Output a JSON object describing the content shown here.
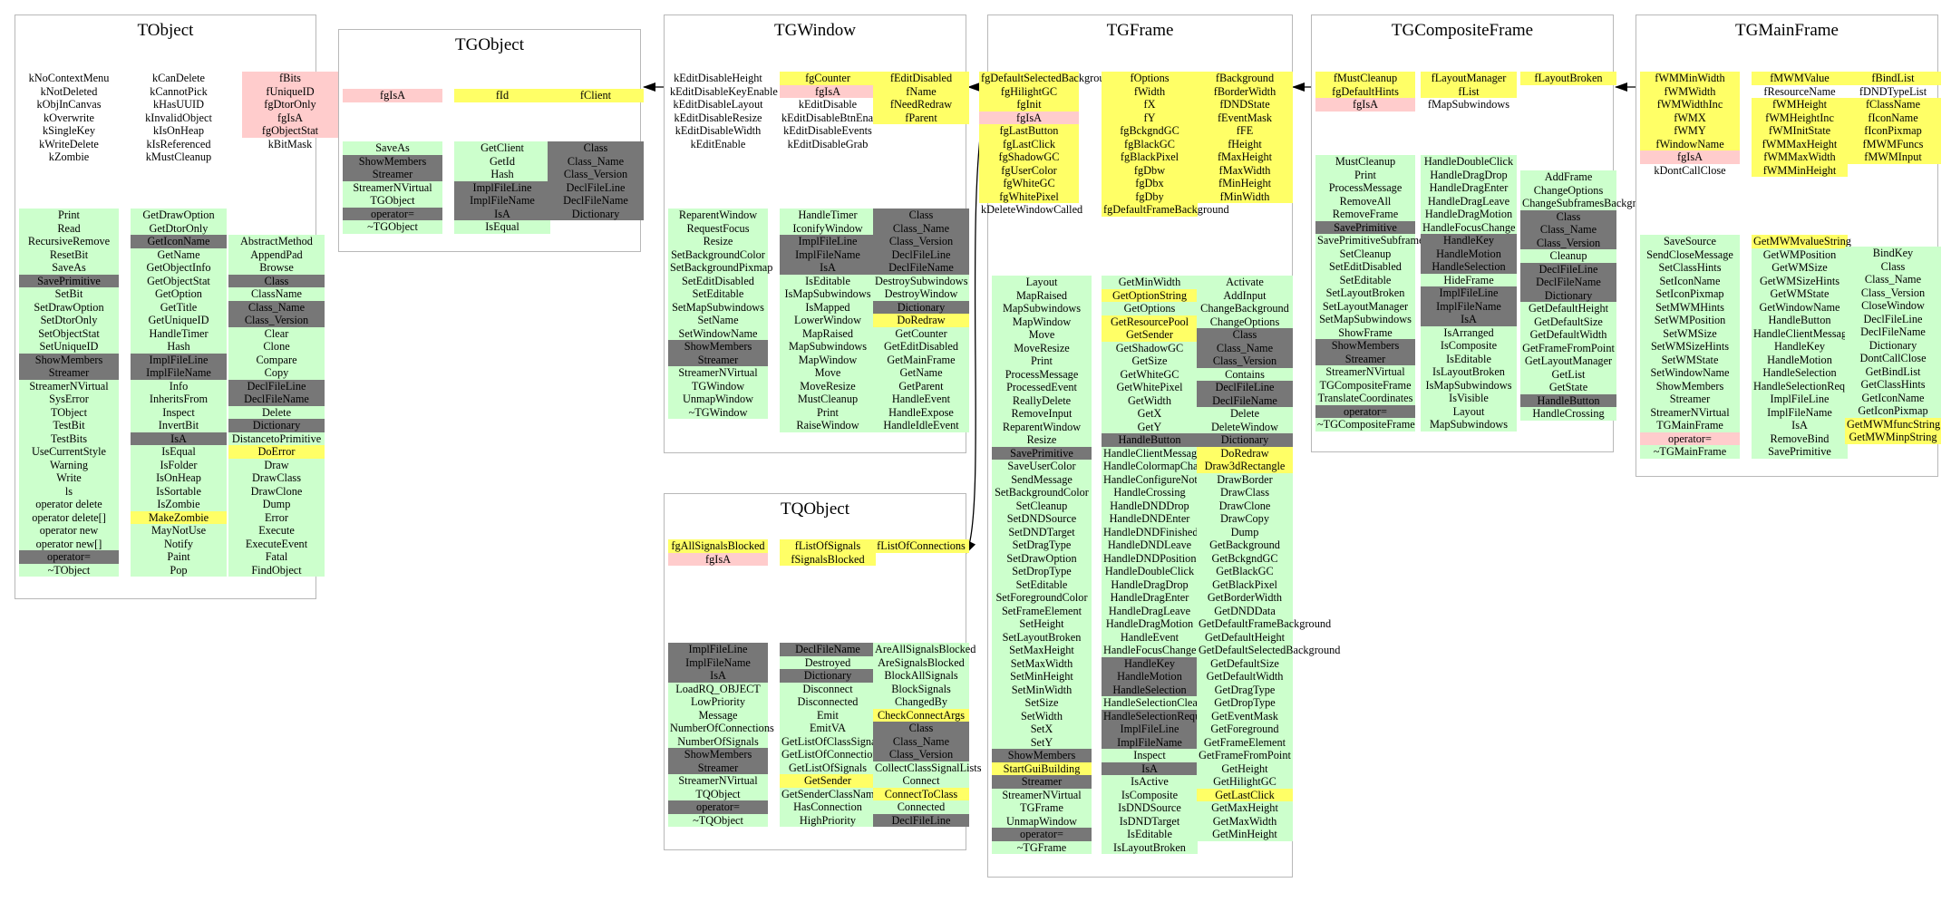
{
  "classes": [
    {
      "name": "TObject",
      "cols": [
        [
          "kNoContextMenu",
          "kNotDeleted",
          "kObjInCanvas",
          "kOverwrite",
          "kSingleKey",
          "kWriteDelete",
          "kZombie"
        ],
        [
          "kCanDelete",
          "kCannotPick",
          "kHasUUID",
          "kInvalidObject",
          "kIsOnHeap",
          "kIsReferenced",
          "kMustCleanup"
        ],
        [
          "fBits|r",
          "fUniqueID|r",
          "fgDtorOnly|r",
          "fgIsA|r",
          "fgObjectStat|r",
          "kBitMask"
        ],
        [
          "Print",
          "Read",
          "RecursiveRemove",
          "ResetBit",
          "SaveAs",
          "SavePrimitive|d",
          "SetBit",
          "SetDrawOption",
          "SetDtorOnly",
          "SetObjectStat",
          "SetUniqueID",
          "ShowMembers|d",
          "Streamer|d",
          "StreamerNVirtual",
          "SysError",
          "TObject",
          "TestBit",
          "TestBits",
          "UseCurrentStyle",
          "Warning",
          "Write",
          "ls",
          "operator delete",
          "operator delete[]",
          "operator new",
          "operator new[]",
          "operator=|d",
          "~TObject"
        ],
        [
          "GetDrawOption",
          "GetDtorOnly",
          "GetIconName|d",
          "GetName",
          "GetObjectInfo",
          "GetObjectStat",
          "GetOption",
          "GetTitle",
          "GetUniqueID",
          "HandleTimer",
          "Hash",
          "ImplFileLine|d",
          "ImplFileName|d",
          "Info",
          "InheritsFrom",
          "Inspect",
          "InvertBit",
          "IsA|d",
          "IsEqual",
          "IsFolder",
          "IsOnHeap",
          "IsSortable",
          "IsZombie",
          "MakeZombie|y",
          "MayNotUse",
          "Notify",
          "Paint",
          "Pop"
        ],
        [
          "AbstractMethod",
          "AppendPad",
          "Browse",
          "Class|d",
          "ClassName",
          "Class_Name|d",
          "Class_Version|d",
          "Clear",
          "Clone",
          "Compare",
          "Copy",
          "DeclFileLine|d",
          "DeclFileName|d",
          "Delete",
          "Dictionary|d",
          "DistancetoPrimitive",
          "DoError|y",
          "Draw",
          "DrawClass",
          "DrawClone",
          "Dump",
          "Error",
          "Execute",
          "ExecuteEvent",
          "Fatal",
          "FindObject"
        ]
      ]
    },
    {
      "name": "TGObject",
      "cols": [
        [
          "fgIsA|r"
        ],
        [
          "fId|y"
        ],
        [
          "fClient|y"
        ],
        [
          "SaveAs",
          "ShowMembers|d",
          "Streamer|d",
          "StreamerNVirtual",
          "TGObject",
          "operator=|d",
          "~TGObject"
        ],
        [
          "GetClient",
          "GetId",
          "Hash",
          "ImplFileLine|d",
          "ImplFileName|d",
          "IsA|d",
          "IsEqual"
        ],
        [
          "Class|d",
          "Class_Name|d",
          "Class_Version|d",
          "DeclFileLine|d",
          "DeclFileName|d",
          "Dictionary|d"
        ]
      ]
    },
    {
      "name": "TGWindow",
      "cols": [
        [
          "kEditDisableHeight",
          "kEditDisableKeyEnable",
          "kEditDisableLayout",
          "kEditDisableResize",
          "kEditDisableWidth",
          "kEditEnable"
        ],
        [
          "fgCounter|y",
          "fgIsA|r",
          "kEditDisable",
          "kEditDisableBtnEnable",
          "kEditDisableEvents",
          "kEditDisableGrab"
        ],
        [
          "fEditDisabled|y",
          "fName|y",
          "fNeedRedraw|y",
          "fParent|y"
        ],
        [
          "ReparentWindow",
          "RequestFocus",
          "Resize",
          "SetBackgroundColor",
          "SetBackgroundPixmap",
          "SetEditDisabled",
          "SetEditable",
          "SetMapSubwindows",
          "SetName",
          "SetWindowName",
          "ShowMembers|d",
          "Streamer|d",
          "StreamerNVirtual",
          "TGWindow",
          "UnmapWindow",
          "~TGWindow"
        ],
        [
          "HandleTimer",
          "IconifyWindow",
          "ImplFileLine|d",
          "ImplFileName|d",
          "IsA|d",
          "IsEditable",
          "IsMapSubwindows",
          "IsMapped",
          "LowerWindow",
          "MapRaised",
          "MapSubwindows",
          "MapWindow",
          "Move",
          "MoveResize",
          "MustCleanup",
          "Print",
          "RaiseWindow"
        ],
        [
          "Class|d",
          "Class_Name|d",
          "Class_Version|d",
          "DeclFileLine|d",
          "DeclFileName|d",
          "DestroySubwindows",
          "DestroyWindow",
          "Dictionary|d",
          "DoRedraw|y",
          "GetCounter",
          "GetEditDisabled",
          "GetMainFrame",
          "GetName",
          "GetParent",
          "HandleEvent",
          "HandleExpose",
          "HandleIdleEvent"
        ]
      ]
    },
    {
      "name": "TQObject",
      "cols": [
        [
          "fgAllSignalsBlocked|y",
          "fgIsA|r"
        ],
        [
          "fListOfSignals|y",
          "fSignalsBlocked|y"
        ],
        [
          "fListOfConnections|y"
        ],
        [
          "ImplFileLine|d",
          "ImplFileName|d",
          "IsA|d",
          "LoadRQ_OBJECT",
          "LowPriority",
          "Message",
          "NumberOfConnections",
          "NumberOfSignals",
          "ShowMembers|d",
          "Streamer|d",
          "StreamerNVirtual",
          "TQObject",
          "operator=|d",
          "~TQObject"
        ],
        [
          "DeclFileName|d",
          "Destroyed",
          "Dictionary|d",
          "Disconnect",
          "Disconnected",
          "Emit",
          "EmitVA",
          "GetListOfClassSignals",
          "GetListOfConnections",
          "GetListOfSignals",
          "GetSender|y",
          "GetSenderClassName",
          "HasConnection",
          "HighPriority"
        ],
        [
          "AreAllSignalsBlocked",
          "AreSignalsBlocked",
          "BlockAllSignals",
          "BlockSignals",
          "ChangedBy",
          "CheckConnectArgs|y",
          "Class|d",
          "Class_Name|d",
          "Class_Version|d",
          "CollectClassSignalLists",
          "Connect",
          "ConnectToClass|y",
          "Connected",
          "DeclFileLine|d"
        ]
      ]
    },
    {
      "name": "TGFrame",
      "cols": [
        [
          "fgDefaultSelectedBackground|y",
          "fgHilightGC|y",
          "fgInit|y",
          "fgIsA|r",
          "fgLastButton|y",
          "fgLastClick|y",
          "fgShadowGC|y",
          "fgUserColor|y",
          "fgWhiteGC|y",
          "fgWhitePixel|y",
          "kDeleteWindowCalled"
        ],
        [
          "fOptions|y",
          "fWidth|y",
          "fX|y",
          "fY|y",
          "fgBckgndGC|y",
          "fgBlackGC|y",
          "fgBlackPixel|y",
          "fgDbw|y",
          "fgDbx|y",
          "fgDby|y",
          "fgDefaultFrameBackground|y"
        ],
        [
          "fBackground|y",
          "fBorderWidth|y",
          "fDNDState|y",
          "fEventMask|y",
          "fFE|y",
          "fHeight|y",
          "fMaxHeight|y",
          "fMaxWidth|y",
          "fMinHeight|y",
          "fMinWidth|y"
        ],
        [
          "Layout",
          "MapRaised",
          "MapSubwindows",
          "MapWindow",
          "Move",
          "MoveResize",
          "Print",
          "ProcessMessage",
          "ProcessedEvent",
          "ReallyDelete",
          "RemoveInput",
          "ReparentWindow",
          "Resize",
          "SavePrimitive|d",
          "SaveUserColor",
          "SendMessage",
          "SetBackgroundColor",
          "SetCleanup",
          "SetDNDSource",
          "SetDNDTarget",
          "SetDragType",
          "SetDrawOption",
          "SetDropType",
          "SetEditable",
          "SetForegroundColor",
          "SetFrameElement",
          "SetHeight",
          "SetLayoutBroken",
          "SetMaxHeight",
          "SetMaxWidth",
          "SetMinHeight",
          "SetMinWidth",
          "SetSize",
          "SetWidth",
          "SetX",
          "SetY",
          "ShowMembers|d",
          "StartGuiBuilding|y",
          "Streamer|d",
          "StreamerNVirtual",
          "TGFrame",
          "UnmapWindow",
          "operator=|d",
          "~TGFrame"
        ],
        [
          "GetMinWidth",
          "GetOptionString|y",
          "GetOptions",
          "GetResourcePool|y",
          "GetSender|y",
          "GetShadowGC",
          "GetSize",
          "GetWhiteGC",
          "GetWhitePixel",
          "GetWidth",
          "GetX",
          "GetY",
          "HandleButton|d",
          "HandleClientMessage",
          "HandleColormapChange",
          "HandleConfigureNotify",
          "HandleCrossing",
          "HandleDNDDrop",
          "HandleDNDEnter",
          "HandleDNDFinished",
          "HandleDNDLeave",
          "HandleDNDPosition",
          "HandleDoubleClick",
          "HandleDragDrop",
          "HandleDragEnter",
          "HandleDragLeave",
          "HandleDragMotion",
          "HandleEvent",
          "HandleFocusChange",
          "HandleKey|d",
          "HandleMotion|d",
          "HandleSelection|d",
          "HandleSelectionClear",
          "HandleSelectionRequest|d",
          "ImplFileLine|d",
          "ImplFileName|d",
          "Inspect",
          "IsA|d",
          "IsActive",
          "IsComposite",
          "IsDNDSource",
          "IsDNDTarget",
          "IsEditable",
          "IsLayoutBroken"
        ],
        [
          "Activate",
          "AddInput",
          "ChangeBackground",
          "ChangeOptions",
          "Class|d",
          "Class_Name|d",
          "Class_Version|d",
          "Contains",
          "DeclFileLine|d",
          "DeclFileName|d",
          "Delete",
          "DeleteWindow",
          "Dictionary|d",
          "DoRedraw|y",
          "Draw3dRectangle|y",
          "DrawBorder",
          "DrawClass",
          "DrawClone",
          "DrawCopy",
          "Dump",
          "GetBackground",
          "GetBckgndGC",
          "GetBlackGC",
          "GetBlackPixel",
          "GetBorderWidth",
          "GetDNDData",
          "GetDefaultFrameBackground",
          "GetDefaultHeight",
          "GetDefaultSelectedBackground",
          "GetDefaultSize",
          "GetDefaultWidth",
          "GetDragType",
          "GetDropType",
          "GetEventMask",
          "GetForeground",
          "GetFrameElement",
          "GetFrameFromPoint",
          "GetHeight",
          "GetHilightGC",
          "GetLastClick|y",
          "GetMaxHeight",
          "GetMaxWidth",
          "GetMinHeight"
        ]
      ]
    },
    {
      "name": "TGCompositeFrame",
      "cols": [
        [
          "fMustCleanup|y",
          "fgDefaultHints|y",
          "fgIsA|r"
        ],
        [
          "fLayoutManager|y",
          "fList|y",
          "fMapSubwindows"
        ],
        [
          "fLayoutBroken|y"
        ],
        [
          "MustCleanup",
          "Print",
          "ProcessMessage",
          "RemoveAll",
          "RemoveFrame",
          "SavePrimitive|d",
          "SavePrimitiveSubframes",
          "SetCleanup",
          "SetEditDisabled",
          "SetEditable",
          "SetLayoutBroken",
          "SetLayoutManager",
          "SetMapSubwindows",
          "ShowFrame",
          "ShowMembers|d",
          "Streamer|d",
          "StreamerNVirtual",
          "TGCompositeFrame",
          "TranslateCoordinates",
          "operator=|d",
          "~TGCompositeFrame"
        ],
        [
          "HandleDoubleClick",
          "HandleDragDrop",
          "HandleDragEnter",
          "HandleDragLeave",
          "HandleDragMotion",
          "HandleFocusChange",
          "HandleKey|d",
          "HandleMotion|d",
          "HandleSelection|d",
          "HideFrame",
          "ImplFileLine|d",
          "ImplFileName|d",
          "IsA|d",
          "IsArranged",
          "IsComposite",
          "IsEditable",
          "IsLayoutBroken",
          "IsMapSubwindows",
          "IsVisible",
          "Layout",
          "MapSubwindows"
        ],
        [
          "AddFrame",
          "ChangeOptions",
          "ChangeSubframesBackground",
          "Class|d",
          "Class_Name|d",
          "Class_Version|d",
          "Cleanup",
          "DeclFileLine|d",
          "DeclFileName|d",
          "Dictionary|d",
          "GetDefaultHeight",
          "GetDefaultSize",
          "GetDefaultWidth",
          "GetFrameFromPoint",
          "GetLayoutManager",
          "GetList",
          "GetState",
          "HandleButton|d",
          "HandleCrossing"
        ]
      ]
    },
    {
      "name": "TGMainFrame",
      "cols": [
        [
          "fWMMinWidth|y",
          "fWMWidth|y",
          "fWMWidthInc|y",
          "fWMX|y",
          "fWMY|y",
          "fWindowName|y",
          "fgIsA|r",
          "kDontCallClose"
        ],
        [
          "fMWMValue|y",
          "fResourceName",
          "fWMHeight|y",
          "fWMHeightInc|y",
          "fWMInitState|y",
          "fWMMaxHeight|y",
          "fWMMaxWidth|y",
          "fWMMinHeight|y"
        ],
        [
          "fBindList|y",
          "fDNDTypeList",
          "fClassName|y",
          "fIconName|y",
          "fIconPixmap|y",
          "fMWMFuncs|y",
          "fMWMInput|y"
        ],
        [
          "SaveSource",
          "SendCloseMessage",
          "SetClassHints",
          "SetIconName",
          "SetIconPixmap",
          "SetMWMHints",
          "SetWMPosition",
          "SetWMSize",
          "SetWMSizeHints",
          "SetWMState",
          "SetWindowName",
          "ShowMembers",
          "Streamer",
          "StreamerNVirtual",
          "TGMainFrame",
          "operator=|r",
          "~TGMainFrame"
        ],
        [
          "GetMWMvalueString|y",
          "GetWMPosition",
          "GetWMSize",
          "GetWMSizeHints",
          "GetWMState",
          "GetWindowName",
          "HandleButton",
          "HandleClientMessage",
          "HandleKey",
          "HandleMotion",
          "HandleSelection",
          "HandleSelectionRequest",
          "ImplFileLine",
          "ImplFileName",
          "IsA",
          "RemoveBind",
          "SavePrimitive"
        ],
        [
          "BindKey",
          "Class",
          "Class_Name",
          "Class_Version",
          "CloseWindow",
          "DeclFileLine",
          "DeclFileName",
          "Dictionary",
          "DontCallClose",
          "GetBindList",
          "GetClassHints",
          "GetIconName",
          "GetIconPixmap",
          "GetMWMfuncString|y",
          "GetMWMinpString|y"
        ]
      ]
    }
  ]
}
